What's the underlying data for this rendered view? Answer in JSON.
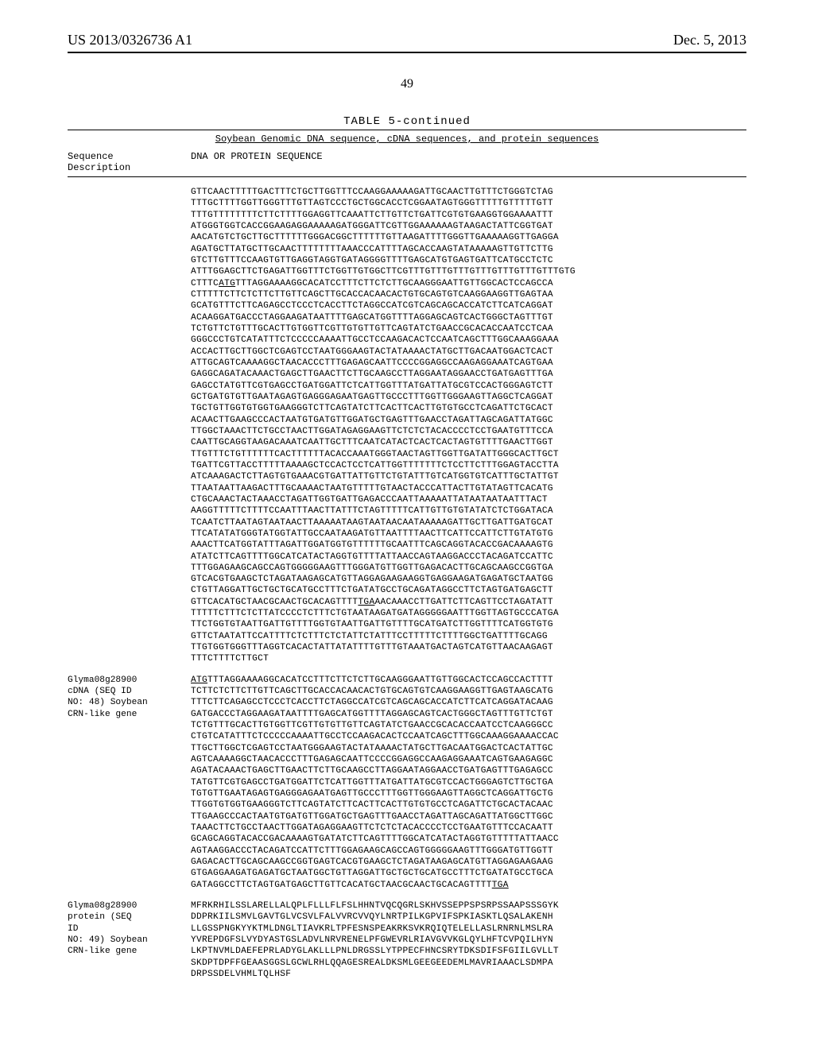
{
  "header": {
    "left": "US 2013/0326736 A1",
    "right": "Dec. 5, 2013"
  },
  "page_number": "49",
  "table": {
    "title": "TABLE 5-continued",
    "subtitle": "Soybean Genomic DNA sequence, cDNA sequences, and protein sequences",
    "col1_header_line1": "Sequence",
    "col1_header_line2": "Description",
    "col2_header": "DNA OR PROTEIN SEQUENCE"
  },
  "rows": [
    {
      "label": "",
      "lines": [
        "GTTCAACTTTTTGACTTTCTGCTTGGTTTCCAAGGAAAAAGATTGCAACTTGTTTCTGGGTCTAG",
        "TTTGCTTTTGGTTGGGTTTGTTAGTCCCTGCTGGCACCTCGGAATAGTGGGTTTTTGTTTTTGTT",
        "TTTGTTTTTTTTCTTCTTTTGGAGGTTCAAATTCTTGTTCTGATTCGTGTGAAGGTGGAAAATTT",
        "ATGGGTGGTCACCGGAAGAGGAAAAAGATGGGATTCGTTGGAAAAAAGTAAGACTATTCGGTGAT",
        "AACATGTCTGCTTGCTTTTTTGGGACGGCTTTTTTGTTAAGATTTTGGGTTGAAAAAGGTTGAGGA",
        "AGATGCTTATGCTTGCAACTTTTTTTTAAACCCATTTTAGCACCAAGTATAAAAAGTTGTTCTTG",
        "GTCTTGTTTCCAAGTGTTGAGGTAGGTGATAGGGGTTTTGAGCATGTGAGTGATTCATGCCTCTC",
        "ATTTGGAGCTTCTGAGATTGGTTTCTGGTTGTGGCTTCGTTTGTTTGTTTGTTTGTTTGTTTGTTTGTG",
        "CTTTC<u>ATG</u>TTTAGGAAAAGGCACATCCTTTCTTCTCTTGCAAGGGAATTGTTGGCACTCCAGCCA",
        "CTTTTTCTTCTCTTCTTGTTCAGCTTGCACCACAACACTGTGCAGTGTCAAGGAAGGTTGAGTAA",
        "GCATGTTTCTTCAGAGCCTCCCTCACCTTCTAGGCCATCGTCAGCAGCACCATCTTCATCAGGAT",
        "ACAAGGATGACCCTAGGAAGATAATTTTGAGCATGGTTTTAGGAGCAGTCACTGGGCTAGTTTGT",
        "TCTGTTCTGTTTGCACTTGTGGTTCGTTGTGTTGTTCAGTATCTGAACCGCACACCAATCCTCAA",
        "GGGCCCTGTCATATTTCTCCCCCAAAATTGCCTCCAAGACACTCCAATCAGCTTTGGCAAAGGAAA",
        "ACCACTTGCTTGGCTCGAGTCCTAATGGGAAGTACTATAAAACTATGCTTGACAATGGACTCACT",
        "ATTGCAGTCAAAAGGCTAACACCCTTTGAGAGCAATTCCCCGGAGGCCAAGAGGAAATCAGTGAA",
        "GAGGCAGATACAAACTGAGCTTGAACTTCTTGCAAGCCTTAGGAATAGGAACCTGATGAGTTTGA",
        "GAGCCTATGTTCGTGAGCCTGATGGATTCTCATTGGTTTATGATTATGCGTCCACTGGGAGTCTT",
        "GCTGATGTGTTGAATAGAGTGAGGGAGAATGAGTTGCCCTTTGGTTGGGAAGTTAGGCTCAGGAT",
        "TGCTGTTGGTGTGGTGAAGGGTCTTCAGTATCTTCACTTCACTTGTGTGCCTCAGATTCTGCACT",
        "ACAACTTGAAGCCCACTAATGTGATGTTGGATGCTGAGTTTGAACCTAGATTAGCAGATTATGGC",
        "TTGGCTAAACTTCTGCCTAACTTGGATAGAGGAAGTTCTCTCTACACCCCTCCTGAATGTTTCCA",
        "CAATTGCAGGTAAGACAAATCAATTGCTTTCAATCATACTCACTCACTAGTGTTTTGAACTTGGT",
        "TTGTTTCTGTTTTTTCACTTTTTTACACCAAATGGGTAACTAGTTGGTTGATATTGGGCACTTGCT",
        "TGATTCGTTACCTTTTTAAAAGCTCCACTCCTCATTGGTTTTTTTCTCCTTCTTTGGAGTACCTTA",
        "ATCAAAGACTCTTAGTGTGAAACGTGATTATTGTTCTGTATTTGTCATGGTGTCATTTGCTATTGT",
        "TTAATAATTAAGACTTTGCAAAACTAATGTTTTTGTAACTACCCATTACTTGTATAGTTCACATG",
        "CTGCAAACTACTAAACCTAGATTGGTGATTGAGACCCAATTAAAAATTATAATAATAATTTACT",
        "AAGGTTTTTCTTTTCCAATTTAACTTATTTCTAGTTTTTCATTGTTGTGTATATCTCTGGATACA",
        "TCAATCTTAATAGTAATAACTTAAAAATAAGTAATAACAATAAAAAGATTGCTTGATTGATGCAT",
        "TTCATATATGGGTATGGTATTGCCAATAAGATGTTAATTTTAACTTCATTCCATTCTTGTATGTG",
        "AAACTTCATGGTATTTAGATTGGATGGTGTTTTTTGCAATTTCAGCAGGTACACCGACAAAAGTG",
        "ATATCTTCAGTTTTGGCATCATACTAGGTGTTTTATTAACCAGTAAGGACCCTACAGATCCATTC",
        "TTTGGAGAAGCAGCCAGTGGGGGAAGTTTGGGATGTTGGTTGAGACACTTGCAGCAAGCCGGTGA",
        "GTCACGTGAAGCTCTAGATAAGAGCATGTTAGGAGAAGAAGGTGAGGAAGATGAGATGCTAATGG",
        "CTGTTAGGATTGCTGCTGCATGCCTTTCTGATATGCCTGCAGATAGGCCTTCTAGTGATGAGCTT",
        "GTTCACATGCTAACGCAACTGCACAGTTTT<u>TGA</u>AACAAACCTTGATTCTTCAGTTCCTAGATATT",
        "TTTTTCTTTCTCTTATCCCCTCTTTCTGTAATAAGATGATAGGGGGAATTTGGTTAGTGCCCATGA",
        "TTCTGGTGTAATTGATTGTTTTGGTGTAATTGATTGTTTTGCATGATCTTGGTTTTCATGGTGTG",
        "GTTCTAATATTCCATTTTCTCTTTCTCTATTCTATTTCCTTTTTCTTTTGGCTGATTTTGCAGG",
        "TTGTGGTGGGTTTAGGTCACACTATTATATTTTGTTTGTAAATGACTAGTCATGTTAACAAGAGT",
        "TTTCTTTTCTTGCT"
      ]
    },
    {
      "label": "Glyma08g28900\ncDNA (SEQ ID\nNO: 48) Soybean\nCRN-like gene",
      "lines": [
        "<u>ATG</u>TTTAGGAAAAGGCACATCCTTTCTTCTCTTGCAAGGGAATTGTTGGCACTCCAGCCACTTTT",
        "TCTTCTCTTCTTGTTCAGCTTGCACCACAACACTGTGCAGTGTCAAGGAAGGTTGAGTAAGCATG",
        "TTTCTTCAGAGCCTCCCTCACCTTCTAGGCCATCGTCAGCAGCACCATCTTCATCAGGATACAAG",
        "GATGACCCTAGGAAGATAATTTTGAGCATGGTTTTAGGAGCAGTCACTGGGCTAGTTTGTTCTGT",
        "TCTGTTTGCACTTGTGGTTCGTTGTGTTGTTCAGTATCTGAACCGCACACCAATCCTCAAGGGCC",
        "CTGTCATATTTCTCCCCCAAAATTGCCTCCAAGACACTCCAATCAGCTTTGGCAAAGGAAAACCAC",
        "TTGCTTGGCTCGAGTCCTAATGGGAAGTACTATAAAACTATGCTTGACAATGGACTCACTATTGC",
        "AGTCAAAAGGCTAACACCCTTTGAGAGCAATTCCCCGGAGGCCAAGAGGAAATCAGTGAAGAGGC",
        "AGATACAAACTGAGCTTGAACTTCTTGCAAGCCTTAGGAATAGGAACCTGATGAGTTTGAGAGCC",
        "TATGTTCGTGAGCCTGATGGATTCTCATTGGTTTATGATTATGCGTCCACTGGGAGTCTTGCTGA",
        "TGTGTTGAATAGAGTGAGGGAGAATGAGTTGCCCTTTGGTTGGGAAGTTAGGCTCAGGATTGCTG",
        "TTGGTGTGGTGAAGGGTCTTCAGTATCTTCACTTCACTTGTGTGCCTCAGATTCTGCACTACAAC",
        "TTGAAGCCCACTAATGTGATGTTGGATGCTGAGTTTGAACCTAGATTAGCAGATTATGGCTTGGC",
        "TAAACTTCTGCCTAACTTGGATAGAGGAAGTTCTCTCTACACCCCTCCTGAATGTTTCCACAATT",
        "GCAGCAGGTACACCGACAAAAGTGATATCTTCAGTTTTGGCATCATACTAGGTGTTTTTATTAACC",
        "AGTAAGGACCCTACAGATCCATTCTTTGGAGAAGCAGCCAGTGGGGGAAGTTTGGGATGTTGGTT",
        "GAGACACTTGCAGCAAGCCGGTGAGTCACGTGAAGCTCTAGATAAGAGCATGTTAGGAGAAGAAG",
        "GTGAGGAAGATGAGATGCTAATGGCTGTTAGGATTGCTGCTGCATGCCTTTCTGATATGCCTGCA",
        "GATAGGCCTTCTAGTGATGAGCTTGTTCACATGCTAACGCAACTGCACAGTTTT<u>TGA</u>"
      ]
    },
    {
      "label": "Glyma08g28900\nprotein (SEQ\nID\nNO: 49) Soybean\nCRN-like gene",
      "lines": [
        "MFRKRHILSSLARELLALQPLFLLLFLFSLHHNTVQCQGRLSKHVSSEPPSPSRPSSAAPSSSGYK",
        "DDPRKIILSMVLGAVTGLVCSVLFALVVRCVVQYLNRTPILKGPVIFSPKIASKTLQSALAKENH",
        "LLGSSPNGKYYKTMLDNGLTIAVKRLTPFESNSPEAKRKSVKRQIQTELELLASLRNRNLMSLRA",
        "YVREPDGFSLVYDYASTGSLADVLNRVRENELPFGWEVRLRIAVGVVKGLQYLHFTCVPQILHYN",
        "LKPTNVMLDAEFEPRLADYGLAKLLLPNLDRGSSLYTPPECFHNCSRYTDKSDIFSFGIILGVLLT",
        "SKDPTDPFFGEAASGGSLGCWLRHLQQAGESREALDKSMLGEEGEEDEMLMAVRIAAACLSDMPA",
        "DRPSSDELVHMLTQLHSF"
      ]
    }
  ]
}
